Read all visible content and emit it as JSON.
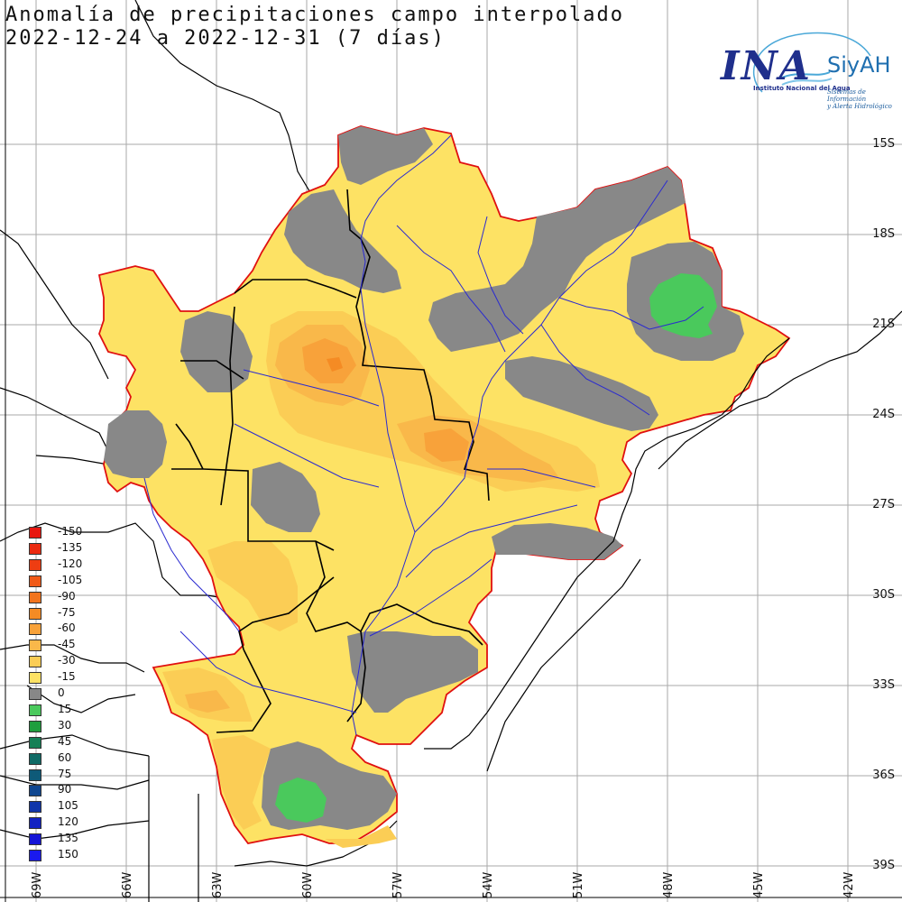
{
  "title": {
    "line1": "Anomalía de precipitaciones campo interpolado",
    "line2": "2022-12-24 a 2022-12-31 (7 días)"
  },
  "logo": {
    "name": "INA",
    "system": "SiyAH",
    "subtitle": "Instituto Nacional del Agua",
    "tagline_1": "Sistemas de Información",
    "tagline_2": "y Alerta Hidrológico"
  },
  "legend": {
    "items": [
      {
        "label": "-150",
        "color": "#e8170f"
      },
      {
        "label": "-135",
        "color": "#eb2a10"
      },
      {
        "label": "-120",
        "color": "#ee3d12"
      },
      {
        "label": "-105",
        "color": "#f05a18"
      },
      {
        "label": "-90",
        "color": "#f2741d"
      },
      {
        "label": "-75",
        "color": "#f58b24"
      },
      {
        "label": "-60",
        "color": "#f8a23a"
      },
      {
        "label": "-45",
        "color": "#f9b84a"
      },
      {
        "label": "-30",
        "color": "#fbcd55"
      },
      {
        "label": "-15",
        "color": "#fde264"
      },
      {
        "label": "0",
        "color": "#888888"
      },
      {
        "label": "15",
        "color": "#4ac95c"
      },
      {
        "label": "30",
        "color": "#1f9e3e"
      },
      {
        "label": "45",
        "color": "#148056"
      },
      {
        "label": "60",
        "color": "#0f6b66"
      },
      {
        "label": "75",
        "color": "#0e5a78"
      },
      {
        "label": "90",
        "color": "#0f4690"
      },
      {
        "label": "105",
        "color": "#1035aa"
      },
      {
        "label": "120",
        "color": "#1222c2"
      },
      {
        "label": "135",
        "color": "#1414d6"
      },
      {
        "label": "150",
        "color": "#1a1aee"
      }
    ]
  },
  "latitudes": [
    "15S",
    "18S",
    "21S",
    "24S",
    "27S",
    "30S",
    "33S",
    "36S",
    "39S"
  ],
  "longitudes": [
    "69W",
    "66W",
    "63W",
    "60W",
    "57W",
    "54W",
    "51W",
    "48W",
    "45W",
    "42W"
  ],
  "colors": {
    "anomaly_high": "#4ac95c",
    "anomaly_zero": "#888888",
    "anomaly_-15": "#fde264",
    "anomaly_-30": "#fbcd55",
    "anomaly_-45": "#f9b84a",
    "anomaly_-60": "#f8a23a",
    "anomaly_-75": "#f58b24",
    "basin_outline": "#e01010",
    "rivers": "#2a2ad0",
    "borders": "#000000",
    "grid": "#aaaaaa"
  }
}
